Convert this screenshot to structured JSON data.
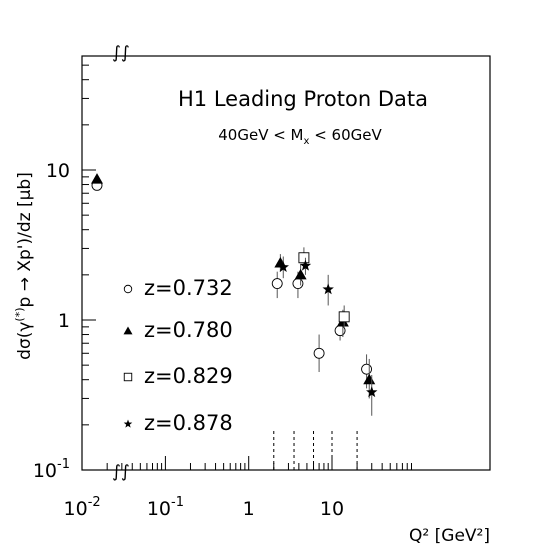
{
  "chart_data": {
    "type": "scatter",
    "title": "H1 Leading Proton Data",
    "subtitle": "40GeV < M",
    "subtitle_sub": "x",
    "subtitle_end": " < 60GeV",
    "ylabel": "dσ(γ(*)p → Xp')/dz [μb]",
    "xlabel": "Q² [GeV²]",
    "xscale": "log",
    "yscale": "log",
    "grid": false,
    "legend_position": "middle-left",
    "x_ticks": [
      {
        "value": 0.01,
        "base": "10",
        "exp": "-2"
      },
      {
        "value": 0.1,
        "base": "10",
        "exp": "-1"
      },
      {
        "value": 1,
        "label": "1"
      },
      {
        "value": 10,
        "label": "10"
      }
    ],
    "y_ticks": [
      {
        "value": 0.1,
        "base": "10",
        "exp": "-1"
      },
      {
        "value": 1,
        "label": "1"
      },
      {
        "value": 10,
        "label": "10"
      }
    ],
    "axis_break_symbol": "∫∫",
    "bin_edges": [
      2,
      3.5,
      6,
      10,
      20
    ],
    "photoproduction_x": "break",
    "series": [
      {
        "name": "z=0.732",
        "marker": "open-circle",
        "photoproduction": 7.9,
        "points": [
          {
            "x": 2.2,
            "y": 1.75,
            "err": [
              0.35,
              0.35
            ]
          },
          {
            "x": 3.9,
            "y": 1.75,
            "err": [
              0.35,
              0.35
            ]
          },
          {
            "x": 7.0,
            "y": 0.6,
            "err": [
              0.15,
              0.2
            ]
          },
          {
            "x": 12.5,
            "y": 0.85,
            "err": [
              0.12,
              0.15
            ]
          },
          {
            "x": 26.0,
            "y": 0.47,
            "err": [
              0.12,
              0.12
            ]
          }
        ]
      },
      {
        "name": "z=0.780",
        "marker": "filled-triangle",
        "photoproduction": 8.7,
        "points": [
          {
            "x": 2.4,
            "y": 2.4,
            "err": [
              0.3,
              0.35
            ]
          },
          {
            "x": 4.2,
            "y": 2.0,
            "err": [
              0.3,
              0.35
            ]
          },
          {
            "x": 13.5,
            "y": 0.97,
            "err": [
              0.2,
              0.2
            ]
          },
          {
            "x": 28.0,
            "y": 0.4,
            "err": [
              0.1,
              0.15
            ]
          }
        ]
      },
      {
        "name": "z=0.829",
        "marker": "open-square",
        "points": [
          {
            "x": 4.6,
            "y": 2.6,
            "err": [
              0.4,
              0.45
            ]
          },
          {
            "x": 14.0,
            "y": 1.05,
            "err": [
              0.15,
              0.2
            ]
          }
        ]
      },
      {
        "name": "z=0.878",
        "marker": "filled-star",
        "points": [
          {
            "x": 2.6,
            "y": 2.25,
            "err": [
              0.35,
              0.4
            ]
          },
          {
            "x": 4.8,
            "y": 2.3,
            "err": [
              0.3,
              0.3
            ]
          },
          {
            "x": 9.0,
            "y": 1.6,
            "err": [
              0.35,
              0.4
            ]
          },
          {
            "x": 30.0,
            "y": 0.33,
            "err": [
              0.1,
              0.1
            ]
          }
        ]
      }
    ]
  }
}
